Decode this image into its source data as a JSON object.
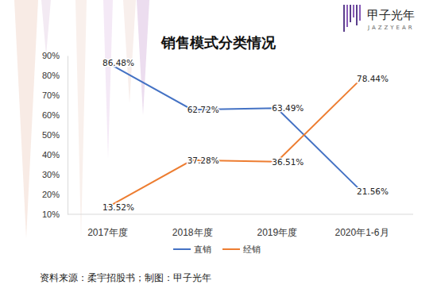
{
  "chart_data": {
    "type": "line",
    "title": "销售模式分类情况",
    "categories": [
      "2017年度",
      "2018年度",
      "2019年度",
      "2020年1-6月"
    ],
    "series": [
      {
        "name": "直销",
        "color": "#4472c4",
        "values": [
          86.48,
          62.72,
          63.49,
          21.56
        ],
        "value_labels": [
          "86.48%",
          "62.72%",
          "63.49%",
          "21.56%"
        ]
      },
      {
        "name": "经销",
        "color": "#ed7d31",
        "values": [
          13.52,
          37.28,
          36.51,
          78.44
        ],
        "value_labels": [
          "13.52%",
          "37.28%",
          "36.51%",
          "78.44%"
        ]
      }
    ],
    "ylim": [
      10,
      90
    ],
    "yticks": [
      {
        "value": 10,
        "label": "10%"
      },
      {
        "value": 20,
        "label": "20%"
      },
      {
        "value": 30,
        "label": "30%"
      },
      {
        "value": 40,
        "label": "40%"
      },
      {
        "value": 50,
        "label": "50%"
      },
      {
        "value": 60,
        "label": "60%"
      },
      {
        "value": 70,
        "label": "70%"
      },
      {
        "value": 80,
        "label": "80%"
      },
      {
        "value": 90,
        "label": "90%"
      }
    ],
    "grid": false,
    "data_labels": true,
    "legend": "bottom",
    "annotations": [
      "资料来源：柔宇招股书；制图：甲子光年",
      "甲子光年",
      "JAZZYEAR"
    ]
  }
}
